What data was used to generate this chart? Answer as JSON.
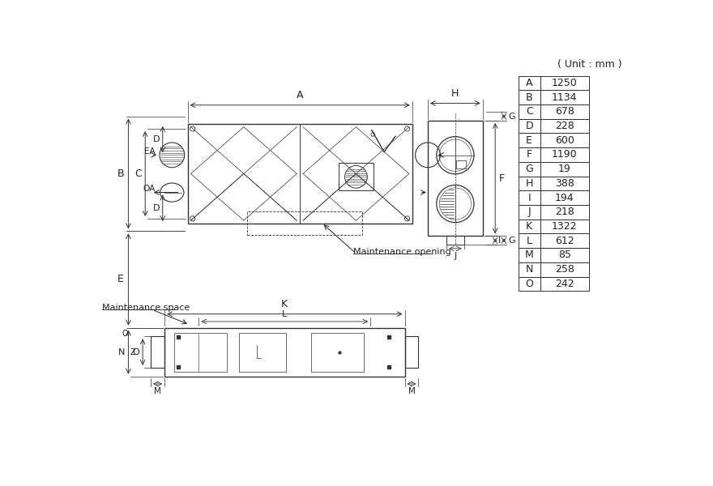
{
  "unit_label": "( Unit : mm )",
  "table_data": [
    [
      "A",
      "1250"
    ],
    [
      "B",
      "1134"
    ],
    [
      "C",
      "678"
    ],
    [
      "D",
      "228"
    ],
    [
      "E",
      "600"
    ],
    [
      "F",
      "1190"
    ],
    [
      "G",
      "19"
    ],
    [
      "H",
      "388"
    ],
    [
      "I",
      "194"
    ],
    [
      "J",
      "218"
    ],
    [
      "K",
      "1322"
    ],
    [
      "L",
      "612"
    ],
    [
      "M",
      "85"
    ],
    [
      "N",
      "258"
    ],
    [
      "O",
      "242"
    ]
  ],
  "bg_color": "#ffffff",
  "line_color": "#333333",
  "font_color": "#222222"
}
